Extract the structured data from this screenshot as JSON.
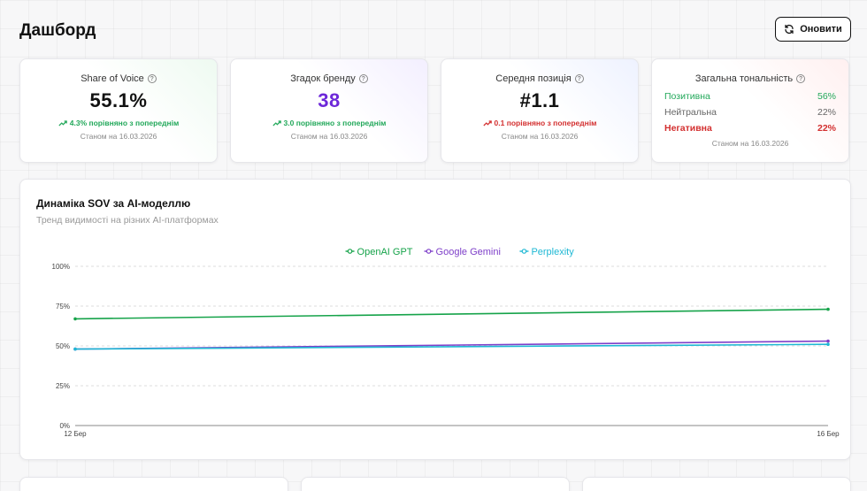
{
  "header": {
    "title": "Дашборд",
    "refresh_label": "Оновити"
  },
  "kpis": [
    {
      "label": "Share of Voice",
      "value": "55.1%",
      "delta": "4.3% порівняно з попереднім",
      "trend": "up",
      "date": "Станом на 16.03.2026"
    },
    {
      "label": "Згадок бренду",
      "value": "38",
      "delta": "3.0 порівняно з попереднім",
      "trend": "up",
      "date": "Станом на 16.03.2026"
    },
    {
      "label": "Середня позиція",
      "value": "#1.1",
      "delta": "0.1 порівняно з попереднім",
      "trend": "down",
      "date": "Станом на 16.03.2026"
    }
  ],
  "sentiment": {
    "label": "Загальна тональність",
    "rows": [
      {
        "label": "Позитивна",
        "value": "56%"
      },
      {
        "label": "Нейтральна",
        "value": "22%"
      },
      {
        "label": "Негативна",
        "value": "22%"
      }
    ],
    "date": "Станом на 16.03.2026"
  },
  "colors": {
    "positive": "#22a85a",
    "negative": "#d32f2f",
    "accent_purple": "#6d28d9"
  },
  "chart_data": {
    "type": "line",
    "title": "Динаміка SOV за AI-моделлю",
    "subtitle": "Тренд видимості на різних AI-платформах",
    "x": [
      "12 Бер",
      "16 Бер"
    ],
    "ylim": [
      0,
      100
    ],
    "yticks": [
      0,
      25,
      50,
      75,
      100
    ],
    "ytick_labels": [
      "0%",
      "25%",
      "50%",
      "75%",
      "100%"
    ],
    "grid": true,
    "legend_position": "top-center",
    "series": [
      {
        "name": "OpenAI GPT",
        "color": "#16a34a",
        "values": [
          67,
          73
        ]
      },
      {
        "name": "Google Gemini",
        "color": "#7e3fc9",
        "values": [
          48,
          53
        ]
      },
      {
        "name": "Perplexity",
        "color": "#1fb8d4",
        "values": [
          48,
          51
        ]
      }
    ]
  }
}
